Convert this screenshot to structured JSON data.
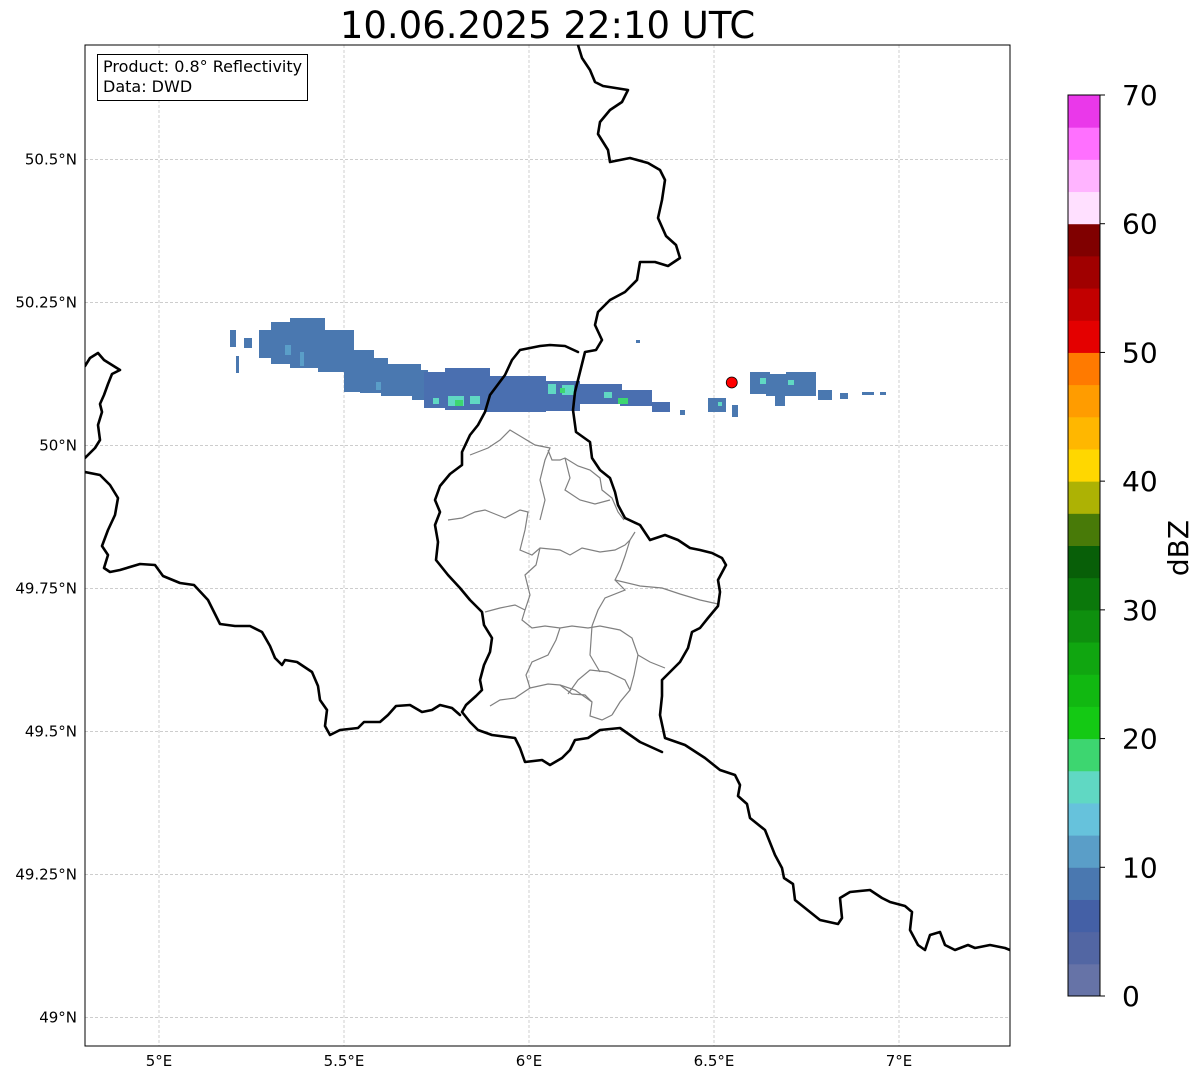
{
  "title": "10.06.2025 22:10 UTC",
  "info_box": {
    "product": "Product: 0.8° Reflectivity",
    "data_source": "Data: DWD"
  },
  "map": {
    "extent": {
      "lon_min": 4.8,
      "lon_max": 7.3,
      "lat_min": 48.95,
      "lat_max": 50.7
    },
    "lat_ticks": [
      {
        "lat": 50.5,
        "label": "50.5°N"
      },
      {
        "lat": 50.25,
        "label": "50.25°N"
      },
      {
        "lat": 50.0,
        "label": "50°N"
      },
      {
        "lat": 49.75,
        "label": "49.75°N"
      },
      {
        "lat": 49.5,
        "label": "49.5°N"
      },
      {
        "lat": 49.25,
        "label": "49.25°N"
      },
      {
        "lat": 49.0,
        "label": "49°N"
      }
    ],
    "lon_ticks": [
      {
        "lon": 5.0,
        "label": "5°E"
      },
      {
        "lon": 5.5,
        "label": "5.5°E"
      },
      {
        "lon": 6.0,
        "label": "6°E"
      },
      {
        "lon": 6.5,
        "label": "6.5°E"
      },
      {
        "lon": 7.0,
        "label": "7°E"
      }
    ],
    "gridlines": true,
    "radar_site": {
      "lon": 6.548,
      "lat": 50.11,
      "color": "#ff0000"
    }
  },
  "colorbar": {
    "label": "dBZ",
    "min": 0,
    "max": 70,
    "step": 2.5,
    "tick_labels": [
      "0",
      "10",
      "20",
      "30",
      "40",
      "50",
      "60",
      "70"
    ],
    "colors": [
      "#6673a7",
      "#5266a3",
      "#4460a6",
      "#4a78b0",
      "#5a9ec8",
      "#66c2dc",
      "#60d8c3",
      "#3dd670",
      "#14c914",
      "#11b811",
      "#10a610",
      "#0e8f0e",
      "#0b780b",
      "#085f08",
      "#487a08",
      "#adb204",
      "#ffd700",
      "#ffb700",
      "#ff9c00",
      "#ff7a00",
      "#e40000",
      "#c20000",
      "#a00000",
      "#800000",
      "#ffe0ff",
      "#ffb4ff",
      "#ff70ff",
      "#ea38ea"
    ]
  },
  "colors": {
    "border": "#000000",
    "districts": "#808080",
    "grid": "#b0b0b0"
  }
}
